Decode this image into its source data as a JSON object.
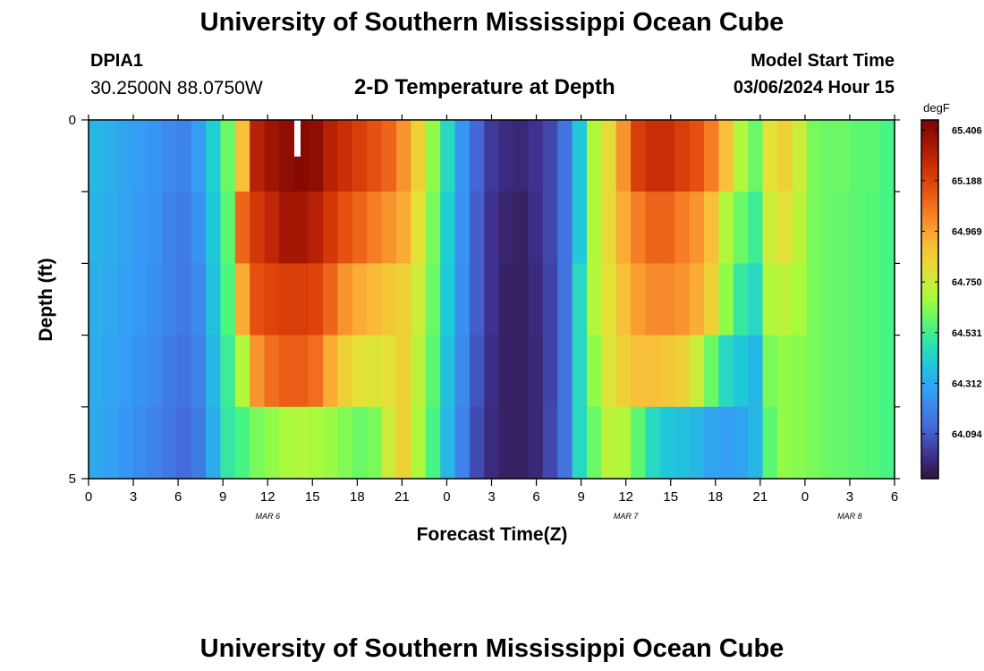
{
  "header": {
    "title": "University of Southern Mississippi Ocean Cube",
    "station": "DPIA1",
    "coords": "30.2500N  88.0750W",
    "subtitle": "2-D Temperature at Depth",
    "start_label": "Model Start Time",
    "start_value": "03/06/2024 Hour 15"
  },
  "footer": {
    "title": "University of Southern Mississippi Ocean Cube"
  },
  "chart_data": {
    "type": "heatmap",
    "title": "2-D Temperature at Depth",
    "xlabel": "Forecast Time(Z)",
    "ylabel": "Depth (ft)",
    "x_ticks": [
      "0",
      "3",
      "6",
      "9",
      "12",
      "15",
      "18",
      "21",
      "0",
      "3",
      "6",
      "9",
      "12",
      "15",
      "18",
      "21",
      "0",
      "3",
      "6"
    ],
    "day_labels": [
      {
        "label": "MAR 6",
        "hour": 12
      },
      {
        "label": "MAR 7",
        "hour": 36
      },
      {
        "label": "MAR 8",
        "hour": 51
      }
    ],
    "x_range_hours": [
      0,
      54
    ],
    "y_ticks": [
      "0",
      "5"
    ],
    "ylim": [
      0,
      5
    ],
    "colorbar": {
      "unit": "degF",
      "ticks": [
        "65.406",
        "65.188",
        "64.969",
        "64.750",
        "64.531",
        "64.312",
        "64.094"
      ],
      "min": 63.9,
      "max": 65.45
    },
    "columns_per_hour": 1,
    "rows_depth_levels": 5,
    "values": [
      [
        64.35,
        64.33,
        64.3,
        64.28,
        64.26,
        64.22,
        64.2,
        64.28,
        64.42,
        64.6,
        64.9,
        65.3,
        65.36,
        65.4,
        65.42,
        65.4,
        65.3,
        65.25,
        65.2,
        65.15,
        65.1,
        65.0,
        64.85,
        64.65,
        64.45,
        64.26,
        64.12,
        64.02,
        63.98,
        63.97,
        64.0,
        64.05,
        64.15,
        64.4,
        64.7,
        64.82,
        65.0,
        65.2,
        65.25,
        65.25,
        65.2,
        65.15,
        65.05,
        64.9,
        64.7,
        64.6,
        64.8,
        64.85,
        64.75,
        64.62,
        64.6,
        64.6,
        64.58,
        64.58,
        64.55
      ],
      [
        64.34,
        64.32,
        64.3,
        64.27,
        64.25,
        64.2,
        64.18,
        64.25,
        64.4,
        64.58,
        65.1,
        65.22,
        65.28,
        65.35,
        65.35,
        65.3,
        65.22,
        65.15,
        65.1,
        65.05,
        65.0,
        64.95,
        64.8,
        64.62,
        64.42,
        64.25,
        64.1,
        64.0,
        63.96,
        63.95,
        63.99,
        64.05,
        64.15,
        64.4,
        64.7,
        64.82,
        64.95,
        65.05,
        65.1,
        65.1,
        65.05,
        65.0,
        64.9,
        64.7,
        64.6,
        64.52,
        64.75,
        64.8,
        64.72,
        64.62,
        64.6,
        64.59,
        64.58,
        64.57,
        64.55
      ],
      [
        64.33,
        64.31,
        64.29,
        64.27,
        64.24,
        64.2,
        64.17,
        64.22,
        64.38,
        64.56,
        64.95,
        65.15,
        65.18,
        65.2,
        65.2,
        65.18,
        65.1,
        65.0,
        64.95,
        64.92,
        64.88,
        64.85,
        64.75,
        64.6,
        64.4,
        64.24,
        64.1,
        64.0,
        63.95,
        63.95,
        63.98,
        64.04,
        64.15,
        64.45,
        64.7,
        64.8,
        64.9,
        64.98,
        65.02,
        65.02,
        65.0,
        64.95,
        64.85,
        64.65,
        64.5,
        64.45,
        64.7,
        64.72,
        64.68,
        64.62,
        64.6,
        64.59,
        64.58,
        64.57,
        64.55
      ],
      [
        64.32,
        64.3,
        64.28,
        64.25,
        64.22,
        64.18,
        64.15,
        64.2,
        64.35,
        64.52,
        64.7,
        65.0,
        65.08,
        65.12,
        65.12,
        65.08,
        64.95,
        64.85,
        64.8,
        64.78,
        64.8,
        64.85,
        64.72,
        64.58,
        64.38,
        64.22,
        64.08,
        63.99,
        63.95,
        63.95,
        63.97,
        64.04,
        64.15,
        64.45,
        64.65,
        64.78,
        64.85,
        64.9,
        64.9,
        64.88,
        64.85,
        64.75,
        64.6,
        64.45,
        64.4,
        64.35,
        64.62,
        64.65,
        64.64,
        64.62,
        64.6,
        64.59,
        64.58,
        64.57,
        64.55
      ],
      [
        64.31,
        64.29,
        64.26,
        64.23,
        64.2,
        64.16,
        64.13,
        64.18,
        64.32,
        64.5,
        64.55,
        64.62,
        64.65,
        64.68,
        64.7,
        64.68,
        64.66,
        64.63,
        64.6,
        64.62,
        64.75,
        64.85,
        64.7,
        64.55,
        64.35,
        64.2,
        64.06,
        63.98,
        63.95,
        63.95,
        63.97,
        64.05,
        64.15,
        64.45,
        64.6,
        64.72,
        64.7,
        64.58,
        64.45,
        64.4,
        64.38,
        64.35,
        64.3,
        64.28,
        64.3,
        64.35,
        64.58,
        64.65,
        64.64,
        64.62,
        64.6,
        64.59,
        64.58,
        64.57,
        64.55
      ]
    ]
  }
}
